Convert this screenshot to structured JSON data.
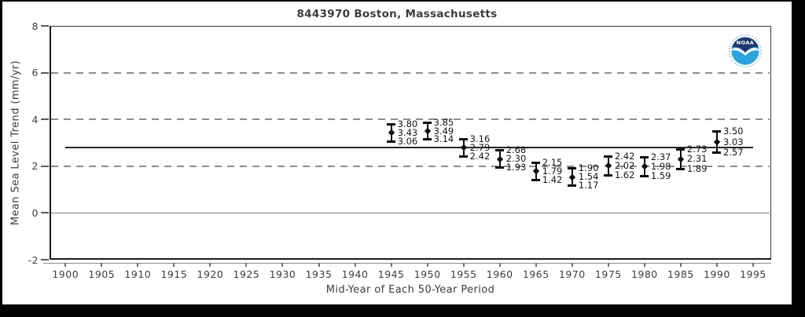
{
  "window": {
    "background": "#000000",
    "chart_background": "#ffffff"
  },
  "logo": {
    "name": "NOAA",
    "text": "NOAA",
    "navy": "#21386f",
    "cyan": "#2ca3dc",
    "ring": "#8ab4dc"
  },
  "chart_data": {
    "type": "scatter",
    "subtype": "error-bar-series",
    "title": "8443970 Boston, Massachusetts",
    "xlabel": "Mid-Year of Each 50-Year Period",
    "ylabel": "Mean Sea Level Trend (mm/yr)",
    "xlim": [
      1897.8,
      1997.5
    ],
    "ylim": [
      -2,
      8
    ],
    "yticks": [
      8,
      6,
      4,
      2,
      0,
      -2
    ],
    "xticks": [
      1900,
      1905,
      1910,
      1915,
      1920,
      1925,
      1930,
      1935,
      1940,
      1945,
      1950,
      1955,
      1960,
      1965,
      1970,
      1975,
      1980,
      1985,
      1990,
      1995
    ],
    "grid": {
      "dashed_at": [
        6,
        4,
        2
      ],
      "solid_at": [
        0
      ],
      "grid_on": true
    },
    "legend_position": "none",
    "reference_line": {
      "value": 2.8,
      "from_year": 1900,
      "to_year": 1995
    },
    "value_label_decimals": 2,
    "points": [
      {
        "year": 1945,
        "upper": 3.8,
        "mean": 3.43,
        "lower": 3.06
      },
      {
        "year": 1950,
        "upper": 3.85,
        "mean": 3.49,
        "lower": 3.14
      },
      {
        "year": 1955,
        "upper": 3.16,
        "mean": 2.79,
        "lower": 2.42
      },
      {
        "year": 1960,
        "upper": 2.68,
        "mean": 2.3,
        "lower": 1.93
      },
      {
        "year": 1965,
        "upper": 2.15,
        "mean": 1.79,
        "lower": 1.42
      },
      {
        "year": 1970,
        "upper": 1.9,
        "mean": 1.54,
        "lower": 1.17
      },
      {
        "year": 1975,
        "upper": 2.42,
        "mean": 2.02,
        "lower": 1.62
      },
      {
        "year": 1980,
        "upper": 2.37,
        "mean": 1.98,
        "lower": 1.59
      },
      {
        "year": 1985,
        "upper": 2.73,
        "mean": 2.31,
        "lower": 1.89
      },
      {
        "year": 1990,
        "upper": 3.5,
        "mean": 3.03,
        "lower": 2.57
      }
    ]
  }
}
